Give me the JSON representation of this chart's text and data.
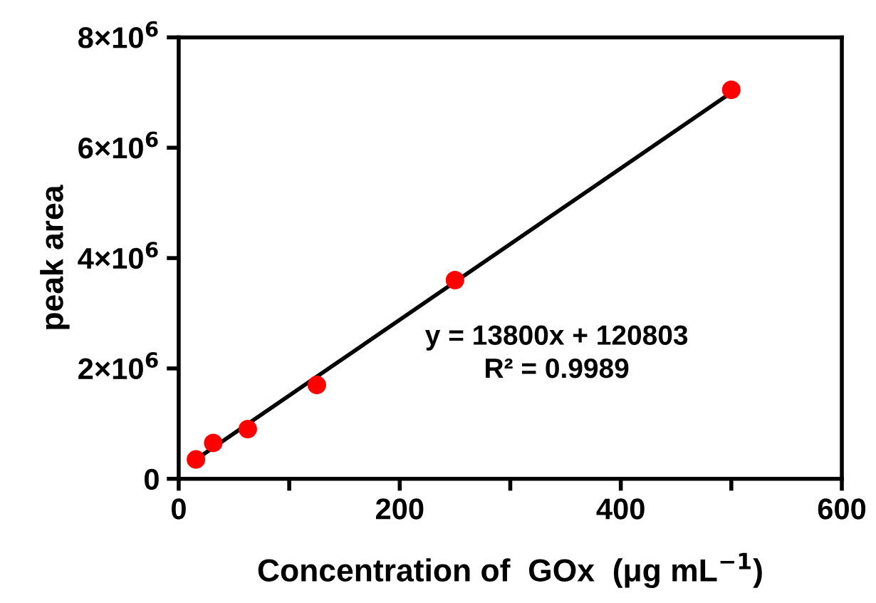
{
  "chart_data": {
    "type": "scatter",
    "xlabel": "Concentration of  GOx  (μg mL$^{−1}$)",
    "ylabel": "peak area",
    "series": [
      {
        "color": "#ff0000",
        "marker": "circle",
        "x": [
          15.6,
          31.25,
          62.5,
          125,
          250,
          500
        ],
        "values": [
          350000,
          650000,
          900000,
          1700000,
          3600000,
          7050000
        ]
      },
      {
        "type": "line",
        "color": "#000000",
        "x": [
          15.6,
          500
        ],
        "values": [
          350000,
          7000000
        ]
      }
    ],
    "xlim": [
      0,
      600
    ],
    "xticks": [
      0,
      {
        "value": 100,
        "label": null
      },
      200,
      {
        "value": 300,
        "label": null
      },
      400,
      {
        "value": 500,
        "label": null
      },
      600
    ],
    "ylim": [
      0,
      8000000
    ],
    "yticks": [
      {
        "value": 0,
        "label": "0"
      },
      {
        "value": 2000000,
        "label": "2×10$^{6}$"
      },
      {
        "value": 4000000,
        "label": "4×10$^{6}$"
      },
      {
        "value": 6000000,
        "label": "6×10$^{6}$"
      },
      {
        "value": 8000000,
        "label": "8×10$^{6}$"
      }
    ],
    "grid": false,
    "legend": false,
    "annotations": [
      "y = 13800x + 120803",
      "R² = 0.9989"
    ]
  }
}
